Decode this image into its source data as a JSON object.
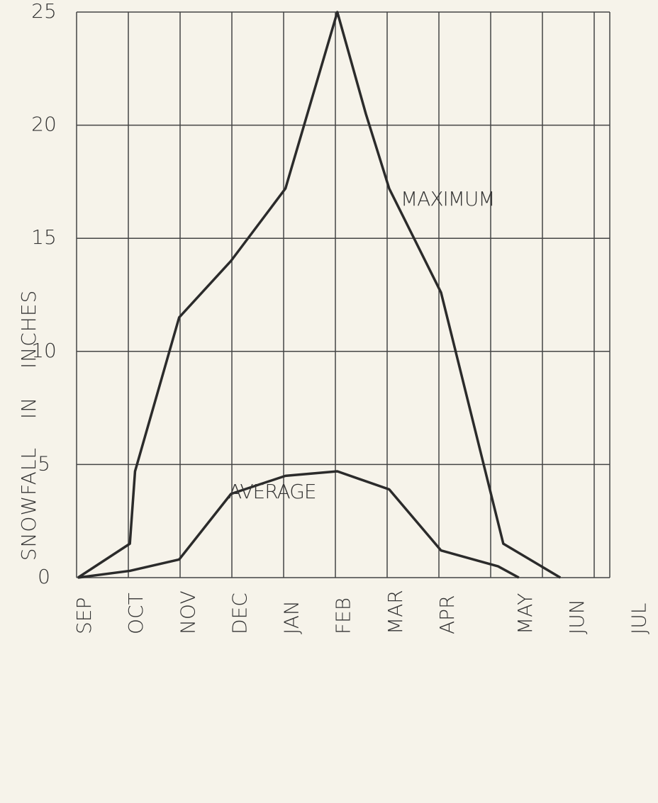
{
  "chart_data": {
    "type": "line",
    "y_label": "SNOWFALL IN INCHES",
    "xlim": [
      0,
      10.8
    ],
    "xticks": [
      {
        "value": 0,
        "label": "SEP"
      },
      {
        "value": 1,
        "label": "OCT"
      },
      {
        "value": 2,
        "label": "NOV"
      },
      {
        "value": 3,
        "label": "DEC"
      },
      {
        "value": 4,
        "label": "JAN"
      },
      {
        "value": 5,
        "label": "FEB"
      },
      {
        "value": 6,
        "label": "MAR"
      },
      {
        "value": 7,
        "label": "APR"
      },
      {
        "value": 8.5,
        "label": "MAY"
      },
      {
        "value": 9.5,
        "label": "JUN"
      },
      {
        "value": 10.7,
        "label": "JUL"
      }
    ],
    "ylim": [
      0,
      25
    ],
    "yticks": [
      0,
      5,
      10,
      15,
      20,
      25
    ],
    "grid": true,
    "series": [
      {
        "name": "MAXIMUM",
        "color": "#2b2b2b",
        "x": [
          0,
          1,
          1.1,
          1.95,
          2.95,
          4,
          5,
          5.55,
          6,
          7,
          8.2,
          9.3
        ],
        "values": [
          0,
          1.5,
          4.7,
          11.5,
          14,
          17.2,
          25,
          20.5,
          17.2,
          12.6,
          1.5,
          0
        ]
      },
      {
        "name": "AVERAGE",
        "color": "#2b2b2b",
        "x": [
          0,
          1,
          1.95,
          2.95,
          4,
          5,
          6,
          7,
          8.1,
          8.5
        ],
        "values": [
          0,
          0.3,
          0.8,
          3.7,
          4.5,
          4.7,
          3.9,
          1.2,
          0.5,
          0
        ]
      }
    ]
  }
}
